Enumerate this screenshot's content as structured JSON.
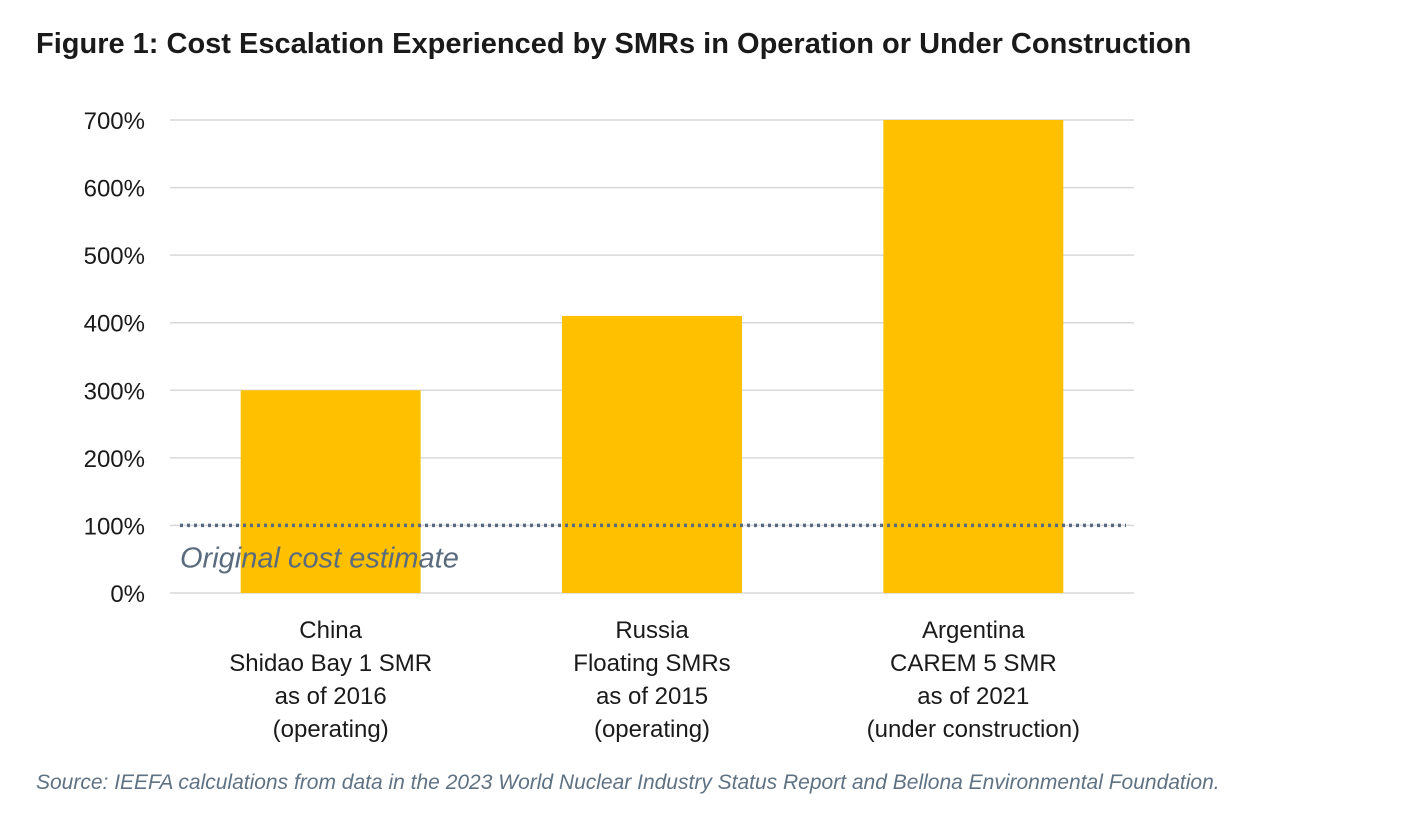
{
  "chart_data": {
    "type": "bar",
    "title": "Figure 1: Cost Escalation Experienced by SMRs in Operation or Under Construction",
    "categories": [
      [
        "China",
        "Shidao Bay 1 SMR",
        "as of 2016",
        "(operating)"
      ],
      [
        "Russia",
        "Floating SMRs",
        "as of 2015",
        "(operating)"
      ],
      [
        "Argentina",
        "CAREM 5 SMR",
        "as of 2021",
        "(under construction)"
      ]
    ],
    "values": [
      300,
      410,
      700
    ],
    "y_unit": "%",
    "ylim": [
      0,
      700
    ],
    "yticks": [
      0,
      100,
      200,
      300,
      400,
      500,
      600,
      700
    ],
    "ytick_labels": [
      "0%",
      "100%",
      "200%",
      "300%",
      "400%",
      "500%",
      "600%",
      "700%"
    ],
    "grid": true,
    "bar_color": "#FFC000",
    "reference_line": {
      "value": 100,
      "label": "Original cost estimate",
      "style": "dotted",
      "color": "#5a6b7d"
    },
    "source": "Source: IEEFA calculations from data in the 2023 World Nuclear Industry Status Report and Bellona Environmental Foundation."
  }
}
